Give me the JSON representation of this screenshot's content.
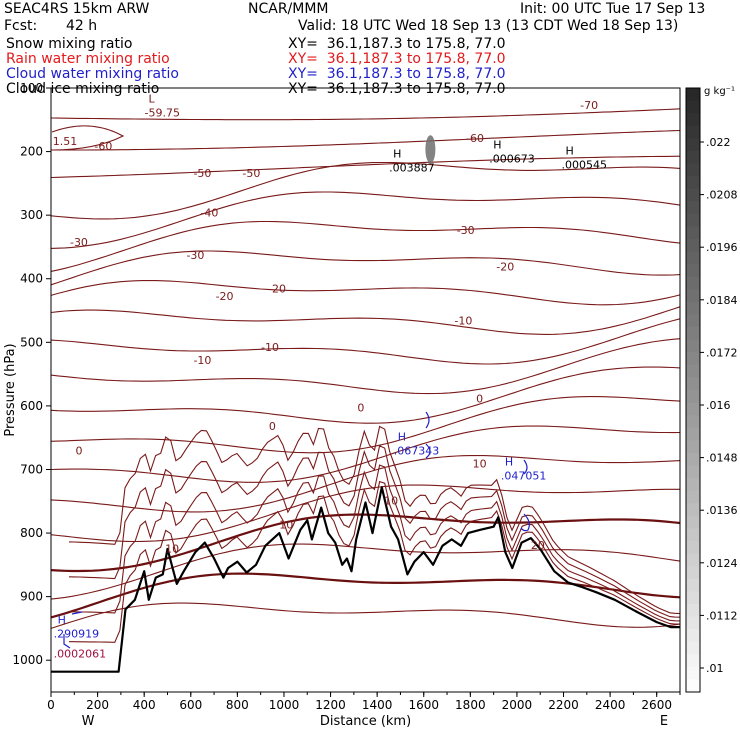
{
  "header": {
    "model": "SEAC4RS 15km ARW",
    "center": "NCAR/MMM",
    "init": "Init: 00 UTC Tue 17 Sep 13",
    "fcst_label": "Fcst:",
    "fcst_value": "42 h",
    "valid": "Valid: 18 UTC Wed 18 Sep 13 (13 CDT Wed 18 Sep 13)"
  },
  "fields": [
    {
      "name": "Snow mixing ratio",
      "xy": "XY=  36.1,187.3 to 175.8, 77.0",
      "color": "#000000"
    },
    {
      "name": "Rain water mixing ratio",
      "xy": "XY=  36.1,187.3 to 175.8, 77.0",
      "color": "#e31a1c"
    },
    {
      "name": "Cloud water mixing ratio",
      "xy": "XY=  36.1,187.3 to 175.8, 77.0",
      "color": "#1f1fcc"
    },
    {
      "name": "Cloud ice mixing ratio",
      "xy": "XY=  36.1,187.3 to 175.8, 77.0",
      "color": "#000000"
    }
  ],
  "colors": {
    "contour": "#7a1a1a",
    "zero_contour": "#6a1010",
    "terrain": "#000000",
    "cloud_water": "#1f1fcc",
    "rain_water": "#a01040"
  },
  "chart_data": {
    "type": "cross-section",
    "xlabel": "Distance (km)",
    "ylabel": "Pressure (hPa)",
    "xlim": [
      0,
      2700
    ],
    "ylim": [
      1050,
      100
    ],
    "xticks": [
      "0",
      "200",
      "400",
      "600",
      "800",
      "1000",
      "1200",
      "1400",
      "1600",
      "1800",
      "2000",
      "2200",
      "2400",
      "2600"
    ],
    "yticks": [
      "100",
      "200",
      "300",
      "400",
      "500",
      "600",
      "700",
      "800",
      "900",
      "1000"
    ],
    "left_end": "W",
    "right_end": "E",
    "colorbar": {
      "unit": "g kg⁻¹",
      "labels": [
        ".022",
        ".0208",
        ".0196",
        ".0184",
        ".0172",
        ".016",
        ".0148",
        ".0136",
        ".0124",
        ".0112",
        ".01"
      ]
    },
    "contour_labels": [
      {
        "text": "-70",
        "x": 2310,
        "y": 128
      },
      {
        "text": "-60",
        "x": 225,
        "y": 193
      },
      {
        "text": "-60",
        "x": 1820,
        "y": 180
      },
      {
        "text": "-50",
        "x": 650,
        "y": 235
      },
      {
        "text": "-50",
        "x": 860,
        "y": 235
      },
      {
        "text": "-40",
        "x": 680,
        "y": 297
      },
      {
        "text": "-30",
        "x": 120,
        "y": 344
      },
      {
        "text": "-30",
        "x": 620,
        "y": 364
      },
      {
        "text": "-30",
        "x": 1780,
        "y": 325
      },
      {
        "text": "-20",
        "x": 745,
        "y": 429
      },
      {
        "text": "-20",
        "x": 970,
        "y": 417
      },
      {
        "text": "-20",
        "x": 1950,
        "y": 382
      },
      {
        "text": "-10",
        "x": 650,
        "y": 529
      },
      {
        "text": "-10",
        "x": 940,
        "y": 509
      },
      {
        "text": "-10",
        "x": 1770,
        "y": 467
      },
      {
        "text": "0",
        "x": 120,
        "y": 672
      },
      {
        "text": "0",
        "x": 950,
        "y": 633
      },
      {
        "text": "0",
        "x": 1330,
        "y": 604
      },
      {
        "text": "0",
        "x": 1840,
        "y": 590
      },
      {
        "text": "10",
        "x": 1010,
        "y": 788
      },
      {
        "text": "10",
        "x": 1460,
        "y": 750
      },
      {
        "text": "10",
        "x": 1840,
        "y": 692
      },
      {
        "text": "10",
        "x": 520,
        "y": 826
      },
      {
        "text": "20",
        "x": 2090,
        "y": 820
      },
      {
        "text": "1.51",
        "x": 60,
        "y": 185
      }
    ],
    "extrema": [
      {
        "kind": "L",
        "value": "-59.75",
        "x": 470,
        "y": 135,
        "color": "#7a1a1a"
      },
      {
        "kind": "H",
        "value": ".003887",
        "x": 1520,
        "y": 222,
        "color": "#000000"
      },
      {
        "kind": "H",
        "value": ".000673",
        "x": 1950,
        "y": 208,
        "color": "#000000"
      },
      {
        "kind": "H",
        "value": ".000545",
        "x": 2260,
        "y": 217,
        "color": "#000000"
      },
      {
        "kind": "H",
        "value": ".067343",
        "x": 1540,
        "y": 667,
        "color": "#1f1fcc"
      },
      {
        "kind": "H",
        "value": ".047051",
        "x": 2000,
        "y": 706,
        "color": "#1f1fcc"
      },
      {
        "kind": "H",
        "value": ".290919",
        "x": 80,
        "y": 955,
        "color": "#1f1fcc"
      },
      {
        "kind": "",
        "value": ".0002061",
        "x": 80,
        "y": 986,
        "color": "#a01040"
      }
    ],
    "terrain": [
      [
        0,
        1018
      ],
      [
        120,
        1018
      ],
      [
        290,
        1018
      ],
      [
        320,
        920
      ],
      [
        360,
        905
      ],
      [
        400,
        860
      ],
      [
        420,
        905
      ],
      [
        450,
        870
      ],
      [
        480,
        865
      ],
      [
        500,
        825
      ],
      [
        540,
        880
      ],
      [
        570,
        860
      ],
      [
        620,
        830
      ],
      [
        660,
        815
      ],
      [
        700,
        840
      ],
      [
        740,
        870
      ],
      [
        760,
        855
      ],
      [
        800,
        845
      ],
      [
        840,
        862
      ],
      [
        880,
        850
      ],
      [
        920,
        820
      ],
      [
        980,
        800
      ],
      [
        1020,
        840
      ],
      [
        1070,
        795
      ],
      [
        1100,
        780
      ],
      [
        1120,
        810
      ],
      [
        1160,
        760
      ],
      [
        1190,
        800
      ],
      [
        1220,
        815
      ],
      [
        1250,
        850
      ],
      [
        1270,
        840
      ],
      [
        1290,
        860
      ],
      [
        1310,
        810
      ],
      [
        1350,
        752
      ],
      [
        1380,
        800
      ],
      [
        1420,
        728
      ],
      [
        1460,
        790
      ],
      [
        1490,
        810
      ],
      [
        1530,
        865
      ],
      [
        1560,
        845
      ],
      [
        1600,
        830
      ],
      [
        1640,
        850
      ],
      [
        1680,
        820
      ],
      [
        1720,
        810
      ],
      [
        1760,
        820
      ],
      [
        1790,
        800
      ],
      [
        1840,
        795
      ],
      [
        1900,
        790
      ],
      [
        1920,
        775
      ],
      [
        1950,
        830
      ],
      [
        1980,
        855
      ],
      [
        2020,
        815
      ],
      [
        2060,
        808
      ],
      [
        2100,
        825
      ],
      [
        2160,
        860
      ],
      [
        2220,
        878
      ],
      [
        2280,
        885
      ],
      [
        2340,
        893
      ],
      [
        2420,
        905
      ],
      [
        2520,
        925
      ],
      [
        2600,
        940
      ],
      [
        2660,
        948
      ],
      [
        2700,
        948
      ]
    ],
    "snow_peak": {
      "x": 1620,
      "y": 190
    }
  }
}
